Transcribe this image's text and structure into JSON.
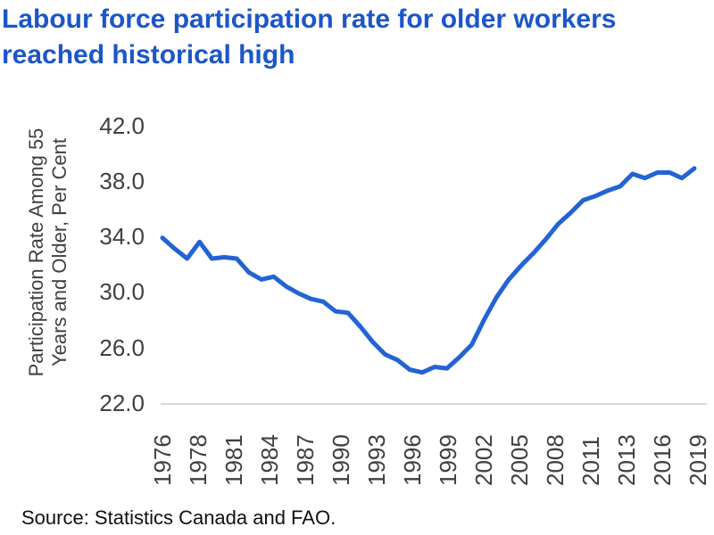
{
  "title": {
    "line1": "Labour force participation rate for older workers",
    "line2": "reached historical high"
  },
  "source": "Source: Statistics Canada and FAO.",
  "colors": {
    "title_text": "#1c56c9",
    "line": "#2363d4",
    "axis_text": "#404040",
    "axis_line": "#d9d9d9",
    "source_text": "#111111"
  },
  "chart_data": {
    "type": "line",
    "title": "Labour force participation rate for older workers reached historical high",
    "ylabel_line1": "Participation Rate Among 55",
    "ylabel_line2": "Years and Older, Per Cent",
    "xlabel": "",
    "ylim": [
      22.0,
      42.0
    ],
    "y_tick_labels": [
      "22.0",
      "26.0",
      "30.0",
      "34.0",
      "38.0",
      "42.0"
    ],
    "x_tick_labels": [
      "1976",
      "1978",
      "1981",
      "1984",
      "1987",
      "1990",
      "1993",
      "1996",
      "1999",
      "2002",
      "2005",
      "2008",
      "2011",
      "2013",
      "2016",
      "2019"
    ],
    "grid": false,
    "legend": "none",
    "x": [
      1976,
      1977,
      1978,
      1979,
      1980,
      1981,
      1982,
      1983,
      1984,
      1985,
      1986,
      1987,
      1988,
      1989,
      1990,
      1991,
      1992,
      1993,
      1994,
      1995,
      1996,
      1997,
      1998,
      1999,
      2000,
      2001,
      2002,
      2003,
      2004,
      2005,
      2006,
      2007,
      2008,
      2009,
      2010,
      2011,
      2012,
      2013,
      2014,
      2015,
      2016,
      2017,
      2018,
      2019
    ],
    "values": [
      33.9,
      33.1,
      32.4,
      33.6,
      32.4,
      32.5,
      32.4,
      31.4,
      30.9,
      31.1,
      30.4,
      29.9,
      29.5,
      29.3,
      28.6,
      28.5,
      27.5,
      26.4,
      25.5,
      25.1,
      24.4,
      24.2,
      24.6,
      24.5,
      25.3,
      26.2,
      28.0,
      29.6,
      30.9,
      31.9,
      32.8,
      33.8,
      34.9,
      35.7,
      36.6,
      36.9,
      37.3,
      37.6,
      38.5,
      38.2,
      38.6,
      38.6,
      38.2,
      38.9
    ]
  }
}
